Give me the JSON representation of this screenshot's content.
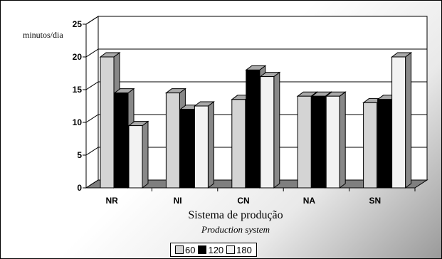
{
  "chart_data": {
    "type": "bar",
    "ylabel": "minutos/dia",
    "xlabel": "Sistema de produção",
    "xlabel_secondary": "Production system",
    "categories": [
      "NR",
      "NI",
      "CN",
      "NA",
      "SN"
    ],
    "series": [
      {
        "name": "60",
        "values": [
          20,
          14.5,
          13.5,
          14,
          13
        ]
      },
      {
        "name": "120",
        "values": [
          14.5,
          12,
          18,
          14,
          13.5
        ]
      },
      {
        "name": "180",
        "values": [
          9.5,
          12.5,
          17,
          14,
          20
        ]
      }
    ],
    "ylim": [
      0,
      25
    ],
    "yticks": [
      "0",
      "5",
      "10",
      "15",
      "20",
      "25"
    ],
    "grid": true,
    "legend_position": "bottom",
    "colors": {
      "60": "#d4d4d4",
      "120": "#000000",
      "180": "#f2f2f2"
    }
  }
}
